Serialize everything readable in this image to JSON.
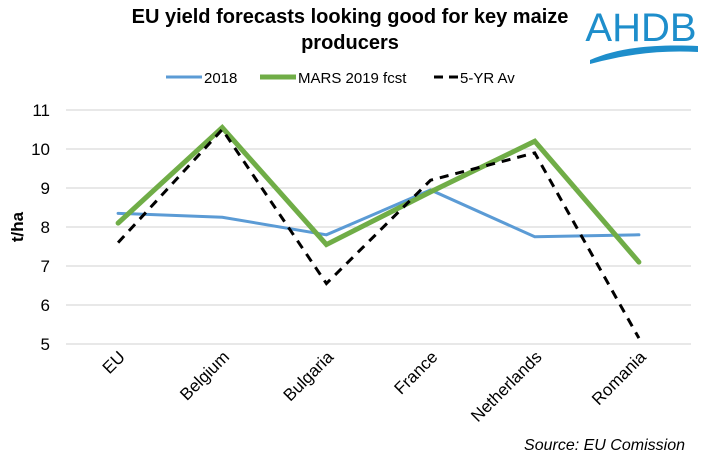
{
  "brand": {
    "logo_text": "AHDB",
    "logo_color": "#1e8ecb"
  },
  "chart_data": {
    "type": "line",
    "title": "EU yield forecasts looking good for key maize producers",
    "xlabel": "",
    "ylabel": "t/ha",
    "categories": [
      "EU",
      "Belgium",
      "Bulgaria",
      "France",
      "Netherlands",
      "Romania"
    ],
    "ylim": [
      5,
      11
    ],
    "yticks": [
      5,
      6,
      7,
      8,
      9,
      10,
      11
    ],
    "grid": true,
    "legend_position": "top",
    "series": [
      {
        "name": "2018",
        "color": "#5b9bd5",
        "style": "solid",
        "weight": "thin",
        "values": [
          8.35,
          8.25,
          7.8,
          8.95,
          7.75,
          7.8
        ]
      },
      {
        "name": "MARS 2019 fcst",
        "color": "#70ad47",
        "style": "solid",
        "weight": "thick",
        "values": [
          8.1,
          10.55,
          7.55,
          8.9,
          10.2,
          7.1
        ]
      },
      {
        "name": "5-YR Av",
        "color": "#000000",
        "style": "dashed",
        "weight": "medium",
        "values": [
          7.6,
          10.5,
          6.55,
          9.2,
          9.9,
          5.15
        ]
      }
    ],
    "source": "Source: EU Comission"
  }
}
